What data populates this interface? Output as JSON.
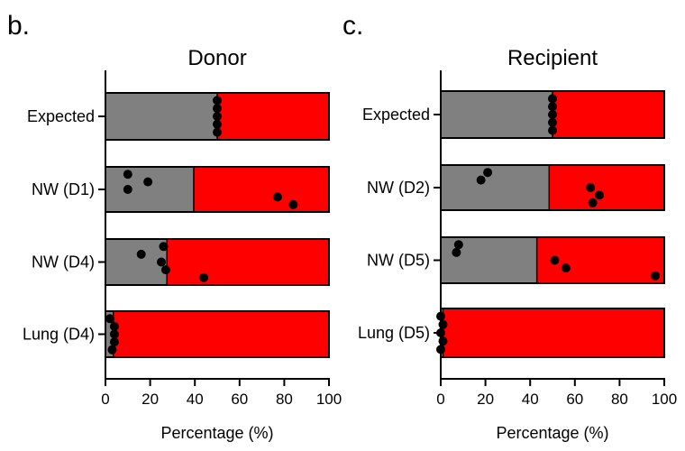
{
  "colors": {
    "gray": "#808080",
    "red": "#ff0000",
    "dot": "#000000",
    "axis": "#000000"
  },
  "chart_data": [
    {
      "type": "bar",
      "orientation": "horizontal",
      "stacked": true,
      "panel_label": "b.",
      "title": "Donor",
      "xlabel": "Percentage (%)",
      "ylabel": "",
      "xlim": [
        0,
        100
      ],
      "xticks": [
        0,
        20,
        40,
        60,
        80,
        100
      ],
      "categories": [
        "Expected",
        "NW (D1)",
        "NW (D4)",
        "Lung (D4)"
      ],
      "series": [
        {
          "color": "gray",
          "values": [
            50,
            39.5,
            27.5,
            3.5
          ]
        },
        {
          "color": "red",
          "values": [
            50,
            60.5,
            72.5,
            96.5
          ]
        }
      ],
      "points": [
        [
          50,
          50,
          50,
          50,
          50
        ],
        [
          10,
          19,
          10,
          77,
          84
        ],
        [
          26,
          16,
          25,
          27,
          44
        ],
        [
          2,
          4,
          4,
          4,
          3
        ]
      ]
    },
    {
      "type": "bar",
      "orientation": "horizontal",
      "stacked": true,
      "panel_label": "c.",
      "title": "Recipient",
      "xlabel": "Percentage (%)",
      "ylabel": "",
      "xlim": [
        0,
        100
      ],
      "xticks": [
        0,
        20,
        40,
        60,
        80,
        100
      ],
      "categories": [
        "Expected",
        "NW (D2)",
        "NW (D5)",
        "Lung (D5)"
      ],
      "series": [
        {
          "color": "gray",
          "values": [
            50,
            48.5,
            43,
            1
          ]
        },
        {
          "color": "red",
          "values": [
            50,
            51.5,
            57,
            99
          ]
        }
      ],
      "points": [
        [
          50,
          50,
          50,
          50,
          50
        ],
        [
          21,
          18,
          67,
          71,
          68
        ],
        [
          8,
          7,
          51,
          56,
          96
        ],
        [
          0,
          1,
          0,
          1,
          0
        ]
      ]
    }
  ]
}
